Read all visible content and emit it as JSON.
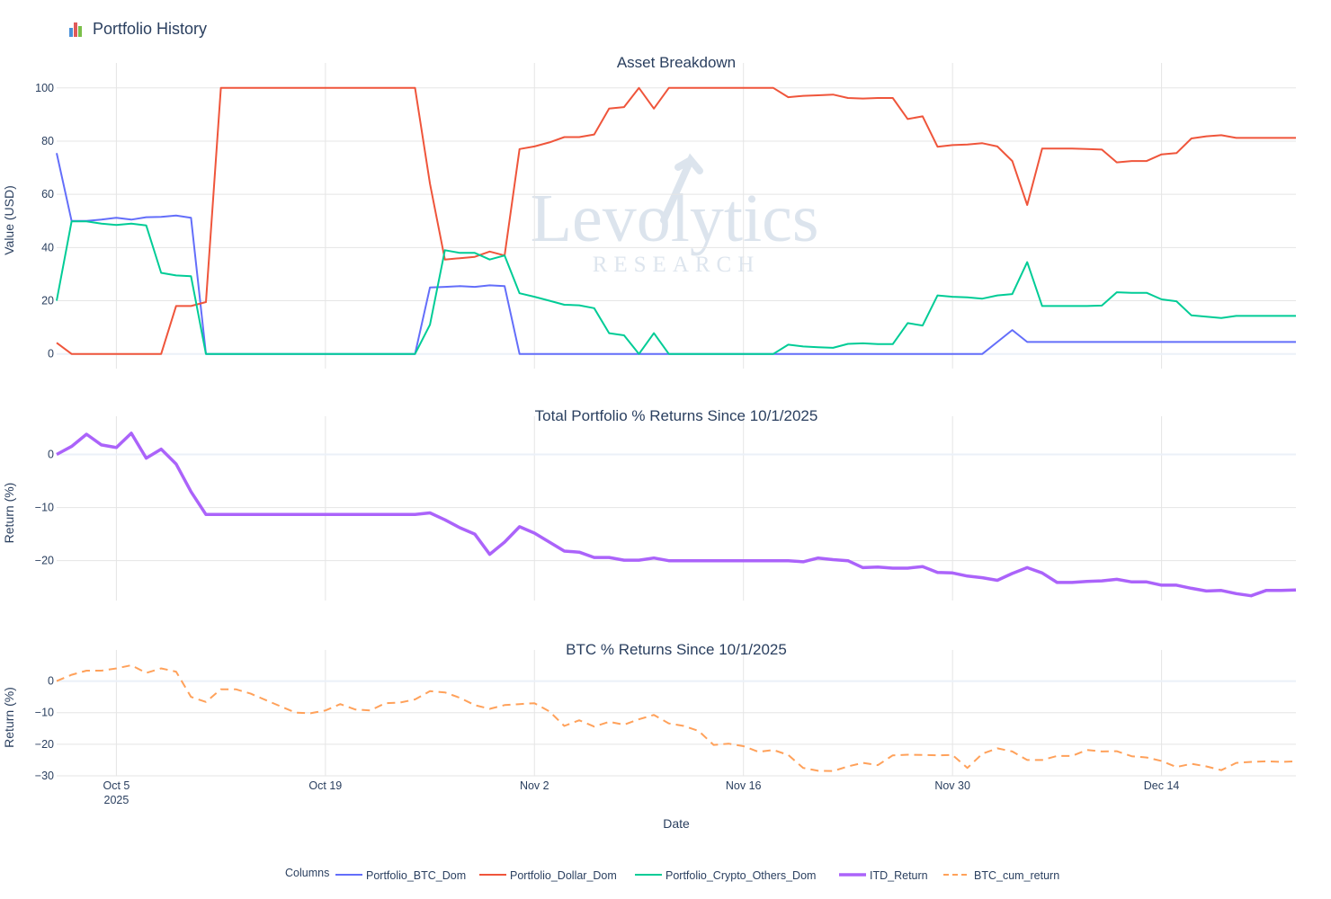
{
  "page": {
    "title": "Portfolio History",
    "icon": "bar-chart-icon"
  },
  "watermark": {
    "line1": "Levolytics",
    "line2": "RESEARCH"
  },
  "colors": {
    "btc_dom": "#636efa",
    "dollar_dom": "#ef553b",
    "crypto_others": "#00cc96",
    "itd_return": "#ab63fa",
    "btc_cum": "#ffa15a",
    "grid": "#e5e5e5"
  },
  "chart_data": [
    {
      "type": "line",
      "title": "Asset Breakdown",
      "ylabel": "Value (USD)",
      "xlabel": "",
      "ylim": [
        -5.5,
        106
      ],
      "yticks": [
        0,
        20,
        40,
        60,
        80,
        100
      ],
      "x": [
        0,
        1,
        2,
        3,
        4,
        5,
        6,
        7,
        8,
        9,
        10,
        11,
        12,
        13,
        14,
        15,
        16,
        17,
        18,
        19,
        20,
        21,
        22,
        23,
        24,
        25,
        26,
        27,
        28,
        29,
        30,
        31,
        32,
        33,
        34,
        35,
        36,
        37,
        38,
        39,
        40,
        41,
        42,
        43,
        44,
        45,
        46,
        47,
        48,
        49,
        50,
        51,
        52,
        53,
        54,
        55,
        56,
        57,
        58,
        59,
        60,
        61,
        62,
        63,
        64,
        65,
        66,
        67,
        68,
        69,
        70,
        71,
        72,
        73,
        74,
        75,
        76,
        77,
        78,
        79,
        80,
        81,
        82,
        83
      ],
      "series": [
        {
          "name": "Portfolio_BTC_Dom",
          "color_key": "btc_dom",
          "dash": false,
          "width": 2,
          "values": [
            75.5,
            50,
            50,
            50.5,
            51.2,
            50.5,
            51.4,
            51.5,
            52,
            51.2,
            0,
            0,
            0,
            0,
            0,
            0,
            0,
            0,
            0,
            0,
            0,
            0,
            0,
            0,
            0,
            25,
            25.2,
            25.5,
            25.2,
            25.8,
            25.5,
            0,
            0,
            0,
            0,
            0,
            0,
            0,
            0,
            0,
            0,
            0,
            0,
            0,
            0,
            0,
            0,
            0,
            0,
            0,
            0,
            0,
            0,
            0,
            0,
            0,
            0,
            0,
            0,
            0,
            0,
            0,
            0,
            4.5,
            9,
            4.5,
            4.5,
            4.5,
            4.5,
            4.5,
            4.5,
            4.5,
            4.5,
            4.5,
            4.5,
            4.5,
            4.5,
            4.5,
            4.5,
            4.5,
            4.5,
            4.5,
            4.5,
            4.5
          ]
        },
        {
          "name": "Portfolio_Dollar_Dom",
          "color_key": "dollar_dom",
          "dash": false,
          "width": 2,
          "values": [
            4.2,
            0,
            0,
            0,
            0,
            0,
            0,
            0,
            18,
            18,
            19.5,
            100,
            100,
            100,
            100,
            100,
            100,
            100,
            100,
            100,
            100,
            100,
            100,
            100,
            100,
            64,
            35.5,
            36,
            36.5,
            38.5,
            37,
            77,
            78,
            79.5,
            81.5,
            81.5,
            82.5,
            92.2,
            92.8,
            100,
            92.2,
            100,
            100,
            100,
            100,
            100,
            100,
            100,
            100,
            96.5,
            97,
            97.2,
            97.5,
            96.2,
            96,
            96.2,
            96.2,
            88.3,
            89.3,
            77.9,
            78.5,
            78.7,
            79.2,
            78,
            72.5,
            56,
            77.2,
            77.2,
            77.2,
            77,
            76.8,
            72,
            72.5,
            72.5,
            75,
            75.5,
            81,
            81.8,
            82.2,
            81.2,
            81.2,
            81.2,
            81.2,
            81.2
          ]
        },
        {
          "name": "Portfolio_Crypto_Others_Dom",
          "color_key": "crypto_others",
          "dash": false,
          "width": 2,
          "values": [
            20,
            49.8,
            49.8,
            49,
            48.5,
            49,
            48.3,
            30.5,
            29.5,
            29.2,
            0,
            0,
            0,
            0,
            0,
            0,
            0,
            0,
            0,
            0,
            0,
            0,
            0,
            0,
            0,
            11,
            39,
            38,
            38,
            35.5,
            37,
            22.8,
            21.5,
            20,
            18.5,
            18.3,
            17.2,
            7.8,
            7,
            0,
            7.8,
            0,
            0,
            0,
            0,
            0,
            0,
            0,
            0,
            3.5,
            2.8,
            2.5,
            2.3,
            3.8,
            4,
            3.7,
            3.7,
            11.6,
            10.7,
            22,
            21.5,
            21.3,
            20.8,
            22,
            22.5,
            34.5,
            18,
            18,
            18,
            18,
            18.2,
            23.2,
            23,
            23,
            20.5,
            19.8,
            14.5,
            14,
            13.5,
            14.3,
            14.3,
            14.3,
            14.3,
            14.3
          ]
        }
      ]
    },
    {
      "type": "line",
      "title": "Total Portfolio % Returns Since 10/1/2025",
      "ylabel": "Return (%)",
      "xlabel": "",
      "ylim": [
        -27.5,
        5.5
      ],
      "yticks": [
        0,
        -10,
        -20
      ],
      "series": [
        {
          "name": "ITD_Return",
          "color_key": "itd_return",
          "dash": false,
          "width": 3.5,
          "values": [
            0,
            1.5,
            3.8,
            1.8,
            1.3,
            4,
            -0.7,
            1,
            -1.8,
            -7,
            -11.3,
            -11.3,
            -11.3,
            -11.3,
            -11.3,
            -11.3,
            -11.3,
            -11.3,
            -11.3,
            -11.3,
            -11.3,
            -11.3,
            -11.3,
            -11.3,
            -11.3,
            -11,
            -12.3,
            -13.8,
            -15,
            -18.8,
            -16.5,
            -13.6,
            -14.8,
            -16.5,
            -18.2,
            -18.4,
            -19.4,
            -19.4,
            -19.9,
            -19.9,
            -19.5,
            -20,
            -20,
            -20,
            -20,
            -20,
            -20,
            -20,
            -20,
            -20,
            -20.2,
            -19.5,
            -19.8,
            -20,
            -21.3,
            -21.2,
            -21.4,
            -21.4,
            -21.1,
            -22.2,
            -22.3,
            -22.9,
            -23.2,
            -23.7,
            -22.4,
            -21.3,
            -22.3,
            -24.1,
            -24.1,
            -23.9,
            -23.8,
            -23.5,
            -24,
            -24,
            -24.6,
            -24.6,
            -25.2,
            -25.7,
            -25.6,
            -26.2,
            -26.6,
            -25.6,
            -25.6,
            -25.5
          ]
        }
      ]
    },
    {
      "type": "line",
      "title": "BTC % Returns Since 10/1/2025",
      "ylabel": "Return (%)",
      "xlabel": "Date",
      "ylim": [
        -30,
        7
      ],
      "yticks": [
        0,
        -10,
        -20,
        -30
      ],
      "series": [
        {
          "name": "BTC_cum_return",
          "color_key": "btc_cum",
          "dash": true,
          "width": 2,
          "values": [
            0,
            2,
            3.3,
            3.3,
            4,
            5,
            2.6,
            4,
            3,
            -5,
            -6.6,
            -2.6,
            -2.6,
            -4,
            -6,
            -8,
            -10,
            -10.2,
            -9.3,
            -7.3,
            -9,
            -9.3,
            -7,
            -6.8,
            -5.8,
            -3.2,
            -3.6,
            -5.3,
            -7.6,
            -8.8,
            -7.6,
            -7.3,
            -7,
            -9.6,
            -14.2,
            -12.4,
            -14.4,
            -12.9,
            -13.8,
            -12.1,
            -10.7,
            -13.4,
            -14.2,
            -15.8,
            -20.2,
            -19.8,
            -20.6,
            -22.4,
            -21.8,
            -23.4,
            -27.5,
            -28.4,
            -28.5,
            -27,
            -25.9,
            -26.6,
            -23.5,
            -23.3,
            -23.4,
            -23.5,
            -23.4,
            -27.5,
            -23,
            -21.3,
            -22.3,
            -25,
            -25,
            -23.7,
            -23.7,
            -21.8,
            -22.3,
            -22.2,
            -23.8,
            -24.2,
            -25.3,
            -27.2,
            -26.2,
            -27,
            -28.2,
            -25.9,
            -25.6,
            -25.4,
            -25.6,
            -25.4
          ]
        }
      ]
    }
  ],
  "x_axis": {
    "title": "Date",
    "ticks": [
      {
        "x": 4,
        "label": "Oct 5",
        "sub": "2025"
      },
      {
        "x": 18,
        "label": "Oct 19",
        "sub": ""
      },
      {
        "x": 32,
        "label": "Nov 2",
        "sub": ""
      },
      {
        "x": 46,
        "label": "Nov 16",
        "sub": ""
      },
      {
        "x": 60,
        "label": "Nov 30",
        "sub": ""
      },
      {
        "x": 74,
        "label": "Dec 14",
        "sub": ""
      }
    ]
  },
  "legend": {
    "title": "Columns",
    "placement": "bottom",
    "items": [
      {
        "label": "Portfolio_BTC_Dom",
        "color_key": "btc_dom",
        "dash": false,
        "width": 2
      },
      {
        "label": "Portfolio_Dollar_Dom",
        "color_key": "dollar_dom",
        "dash": false,
        "width": 2
      },
      {
        "label": "Portfolio_Crypto_Others_Dom",
        "color_key": "crypto_others",
        "dash": false,
        "width": 2
      },
      {
        "label": "ITD_Return",
        "color_key": "itd_return",
        "dash": false,
        "width": 3.5
      },
      {
        "label": "BTC_cum_return",
        "color_key": "btc_cum",
        "dash": true,
        "width": 2
      }
    ]
  }
}
